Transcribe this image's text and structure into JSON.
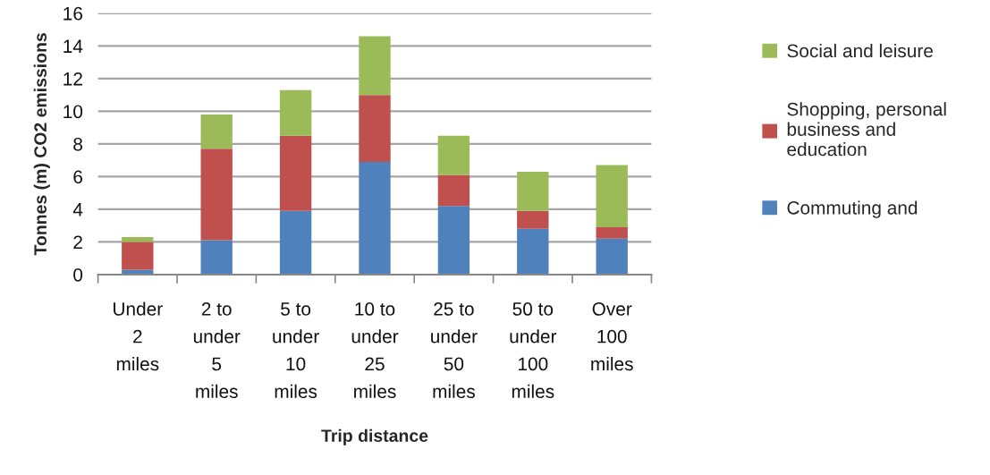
{
  "chart_data": {
    "type": "bar",
    "stacked": true,
    "xlabel": "Trip distance",
    "ylabel": "Tonnes (m) CO2 emissions",
    "categories": [
      "Under 2 miles",
      "2 to under 5 miles",
      "5 to under 10 miles",
      "10 to under 25 miles",
      "25 to under 50 miles",
      "50 to under 100 miles",
      "Over 100 miles"
    ],
    "series": [
      {
        "name": "Commuting and",
        "color": "#4f81bd",
        "values": [
          0.3,
          2.1,
          3.9,
          6.9,
          4.2,
          2.8,
          2.2
        ]
      },
      {
        "name": "Shopping, personal business and education",
        "color": "#c0504d",
        "values": [
          1.7,
          5.6,
          4.6,
          4.1,
          1.9,
          1.1,
          0.7
        ]
      },
      {
        "name": "Social and leisure",
        "color": "#9bbb59",
        "values": [
          0.3,
          2.1,
          2.8,
          3.6,
          2.4,
          2.4,
          3.8
        ]
      }
    ],
    "ylim": [
      0,
      16
    ],
    "yticks": [
      0,
      2,
      4,
      6,
      8,
      10,
      12,
      14,
      16
    ],
    "grid": "y",
    "legend": "right"
  }
}
